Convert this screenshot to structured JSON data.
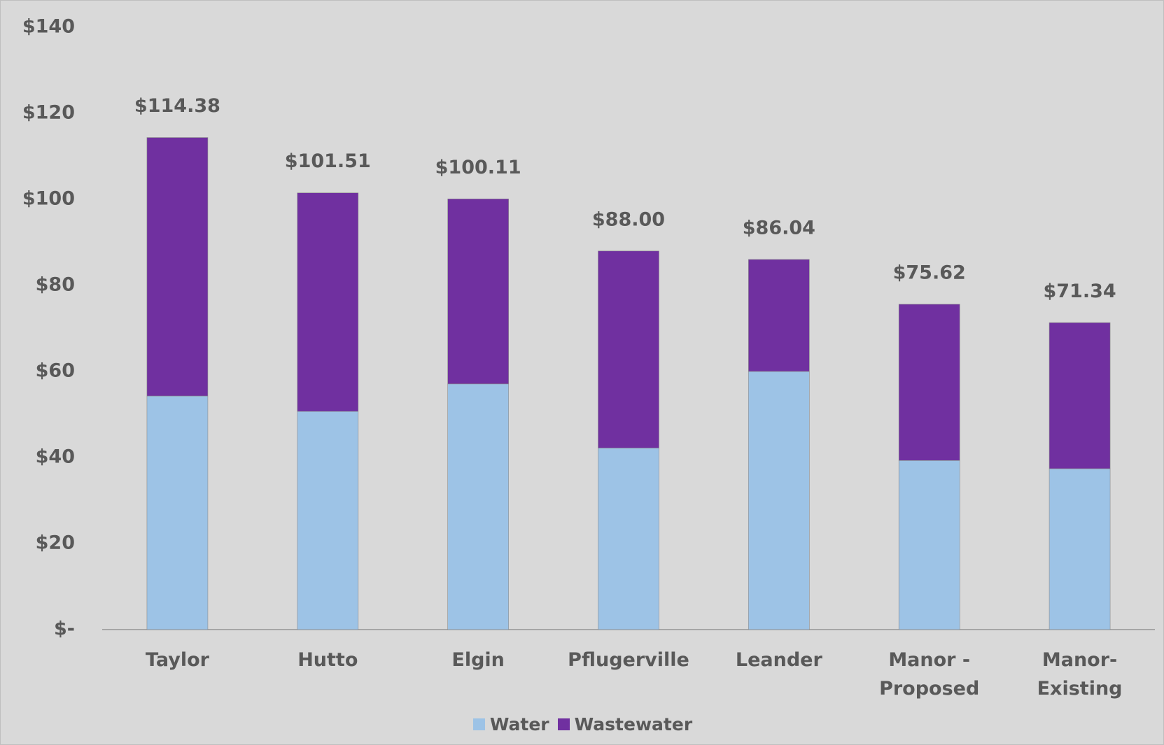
{
  "chart_data": {
    "type": "stacked_bar",
    "categories": [
      "Taylor",
      "Hutto",
      "Elgin",
      "Pflugerville",
      "Leander",
      "Manor - Proposed",
      "Manor-Existing"
    ],
    "series": [
      {
        "name": "Water",
        "color": "#9dc3e6",
        "values": [
          54.3,
          50.7,
          57.1,
          42.2,
          60.0,
          39.3,
          37.4
        ]
      },
      {
        "name": "Wastewater",
        "color": "#7030a0",
        "values": [
          60.08,
          50.81,
          43.01,
          45.8,
          26.04,
          36.32,
          33.94
        ]
      }
    ],
    "totals": [
      114.38,
      101.51,
      100.11,
      88.0,
      86.04,
      75.62,
      71.34
    ],
    "total_labels": [
      "$114.38",
      "$101.51",
      "$100.11",
      "$88.00",
      "$86.04",
      "$75.62",
      "$71.34"
    ],
    "ylim": [
      0,
      140
    ],
    "yticks": [
      {
        "value": 0,
        "label": "$-"
      },
      {
        "value": 20,
        "label": "$20"
      },
      {
        "value": 40,
        "label": "$40"
      },
      {
        "value": 60,
        "label": "$60"
      },
      {
        "value": 80,
        "label": "$80"
      },
      {
        "value": 100,
        "label": "$100"
      },
      {
        "value": 120,
        "label": "$120"
      },
      {
        "value": 140,
        "label": "$140"
      }
    ],
    "grid": false,
    "legend": "bottom"
  }
}
